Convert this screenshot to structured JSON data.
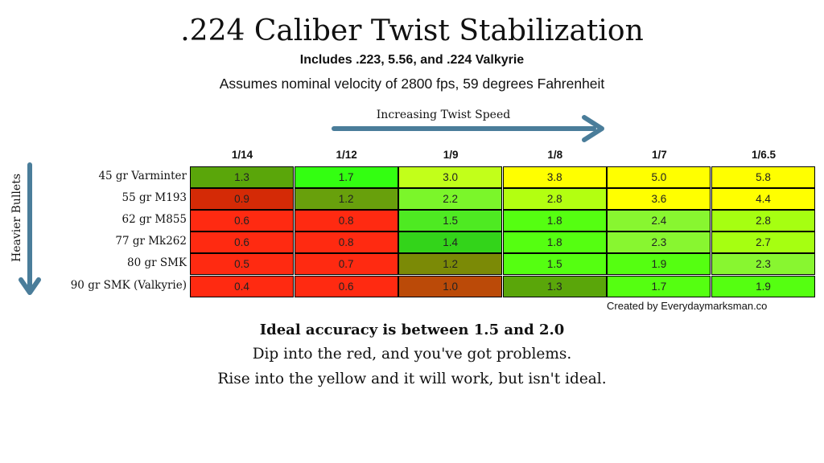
{
  "chart_data": {
    "type": "table",
    "title": ".224 Caliber Twist Stabilization",
    "subtitle": "Includes .223, 5.56, and .224 Valkyrie",
    "assumption": "Assumes nominal velocity of 2800 fps, 59 degrees Fahrenheit",
    "x_axis_label": "Increasing Twist Speed",
    "y_axis_label": "Heavier Bullets",
    "columns": [
      "1/14",
      "1/12",
      "1/9",
      "1/8",
      "1/7",
      "1/6.5"
    ],
    "rows": [
      {
        "label": "45 gr Varminter",
        "values": [
          "1.3",
          "1.7",
          "3.0",
          "3.8",
          "5.0",
          "5.8"
        ]
      },
      {
        "label": "55 gr M193",
        "values": [
          "0.9",
          "1.2",
          "2.2",
          "2.8",
          "3.6",
          "4.4"
        ]
      },
      {
        "label": "62 gr M855",
        "values": [
          "0.6",
          "0.8",
          "1.5",
          "1.8",
          "2.4",
          "2.8"
        ]
      },
      {
        "label": "77 gr Mk262",
        "values": [
          "0.6",
          "0.8",
          "1.4",
          "1.8",
          "2.3",
          "2.7"
        ]
      },
      {
        "label": "80 gr SMK",
        "values": [
          "0.5",
          "0.7",
          "1.2",
          "1.5",
          "1.9",
          "2.3"
        ]
      },
      {
        "label": "90 gr SMK (Valkyrie)",
        "values": [
          "0.4",
          "0.6",
          "1.0",
          "1.3",
          "1.7",
          "1.9"
        ]
      }
    ],
    "cell_colors": [
      [
        "#5aa60a",
        "#33ff11",
        "#c2ff1a",
        "#ffff00",
        "#ffff00",
        "#ffff00"
      ],
      [
        "#d42a06",
        "#68a00c",
        "#7bf62a",
        "#b3ff11",
        "#ffff00",
        "#ffff00"
      ],
      [
        "#ff2a11",
        "#ff2a11",
        "#4eea22",
        "#55ff11",
        "#88f630",
        "#a6ff11"
      ],
      [
        "#ff2a11",
        "#ff2a11",
        "#33d41a",
        "#55ff11",
        "#88f630",
        "#a6ff11"
      ],
      [
        "#ff2a11",
        "#ff2a11",
        "#7b8a06",
        "#55ff11",
        "#55ff11",
        "#88f630"
      ],
      [
        "#ff2a11",
        "#ff2a11",
        "#bb4a08",
        "#5aa60a",
        "#55ff11",
        "#55ff11"
      ]
    ],
    "arrow_color": "#4a7d9a",
    "credit": "Created by Everydaymarksman.co"
  },
  "notes": {
    "headline": "Ideal accuracy is between 1.5 and 2.0",
    "line1": "Dip into the red, and you've got problems.",
    "line2": "Rise into the yellow and it will work, but isn't ideal."
  }
}
